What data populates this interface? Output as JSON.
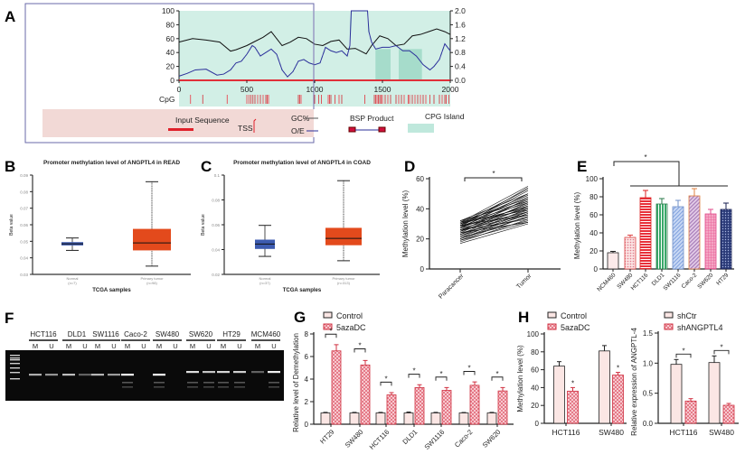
{
  "panel_labels": {
    "A": "A",
    "B": "B",
    "C": "C",
    "D": "D",
    "E": "E",
    "F": "F",
    "G": "G",
    "H": "H"
  },
  "colors": {
    "gc": "#111111",
    "oe": "#2b2f9a",
    "cpg": "#e0303a",
    "island": "#bfe8dc",
    "legend_bg": "#f2d9d6",
    "box_normal": "#3d5bb0",
    "box_tumor": "#e34a1c",
    "bar_ctrl": "#fbe6e4",
    "bar_aza": "#e8909a"
  },
  "chart_data": [
    {
      "id": "A",
      "type": "line",
      "xlim": [
        0,
        2000
      ],
      "xticks": [
        "0",
        "500",
        "1000",
        "1500",
        "2000"
      ],
      "ylim_left": [
        0,
        100
      ],
      "yticks_left": [
        "0",
        "20",
        "40",
        "60",
        "80",
        "100"
      ],
      "ylim_right": [
        0.0,
        2.0
      ],
      "yticks_right": [
        "0.0",
        "0.4",
        "0.8",
        "1.2",
        "1.6",
        "2.0"
      ],
      "series": [
        {
          "name": "GC%",
          "axis": "left",
          "x": [
            0,
            100,
            200,
            300,
            380,
            420,
            500,
            560,
            620,
            680,
            720,
            760,
            820,
            880,
            940,
            1000,
            1060,
            1120,
            1180,
            1240,
            1300,
            1380,
            1420,
            1480,
            1540,
            1600,
            1660,
            1720,
            1780,
            1840,
            1900,
            1960,
            2000
          ],
          "y": [
            55,
            60,
            58,
            55,
            42,
            44,
            50,
            56,
            62,
            70,
            60,
            50,
            55,
            62,
            60,
            52,
            50,
            56,
            58,
            45,
            46,
            38,
            50,
            64,
            60,
            50,
            52,
            64,
            66,
            70,
            74,
            70,
            66
          ]
        },
        {
          "name": "O/E",
          "axis": "right",
          "x": [
            0,
            60,
            120,
            200,
            280,
            330,
            380,
            420,
            460,
            500,
            540,
            560,
            600,
            640,
            680,
            720,
            760,
            800,
            840,
            880,
            920,
            960,
            1000,
            1040,
            1080,
            1120,
            1160,
            1200,
            1240,
            1260,
            1270,
            1390,
            1400,
            1420,
            1450,
            1500,
            1550,
            1600,
            1650,
            1700,
            1750,
            1800,
            1850,
            1880,
            1920,
            1960,
            2000
          ],
          "y": [
            0.12,
            0.2,
            0.3,
            0.32,
            0.15,
            0.18,
            0.3,
            0.5,
            0.55,
            0.75,
            1.0,
            0.95,
            0.7,
            0.8,
            0.9,
            0.75,
            0.3,
            0.1,
            0.25,
            0.55,
            0.6,
            0.5,
            0.45,
            0.5,
            0.95,
            0.85,
            0.8,
            0.85,
            0.7,
            1.0,
            2.0,
            2.0,
            1.4,
            1.1,
            0.9,
            0.95,
            0.95,
            1.0,
            0.85,
            0.85,
            0.7,
            0.45,
            0.3,
            0.4,
            0.6,
            1.05,
            0.85
          ]
        }
      ],
      "cpg_label": "CpG",
      "cpg_positions": [
        85,
        175,
        355,
        500,
        515,
        530,
        545,
        560,
        580,
        600,
        620,
        640,
        650,
        660,
        880,
        890,
        900,
        1000,
        1030,
        1050,
        1100,
        1110,
        1120,
        1150,
        1180,
        1200,
        1370,
        1440,
        1450,
        1460,
        1470,
        1480,
        1490,
        1500,
        1520,
        1540,
        1560,
        1600,
        1620,
        1640,
        1660,
        1690,
        1700,
        1720,
        1740,
        1760,
        1780,
        1800,
        1820,
        1850,
        1880,
        1920,
        1940,
        1960,
        1970,
        1990
      ],
      "cpg_islands": [
        [
          1450,
          1560
        ],
        [
          1620,
          1790
        ]
      ],
      "legend": {
        "input_sequence": "Input Sequence",
        "tss": "TSS",
        "gc": "GC%",
        "oe": "O/E",
        "bsp": "BSP Product",
        "island": "CPG Island"
      }
    },
    {
      "id": "B",
      "type": "box",
      "title": "Promoter methylation level of ANGPTL4 in READ",
      "ylabel": "Beta value",
      "xlabel": "TCGA samples",
      "ylim": [
        0.03,
        0.09
      ],
      "yticks": [
        "0.03",
        "0.04",
        "0.05",
        "0.06",
        "0.07",
        "0.08",
        "0.09"
      ],
      "categories": [
        {
          "name": "Normal",
          "n": "(n=7)",
          "min": 0.0445,
          "q1": 0.0475,
          "median": 0.0485,
          "q3": 0.0495,
          "max": 0.052
        },
        {
          "name": "Primary tumor",
          "n": "(n=98)",
          "min": 0.035,
          "q1": 0.0445,
          "median": 0.049,
          "q3": 0.0575,
          "max": 0.086
        }
      ]
    },
    {
      "id": "C",
      "type": "box",
      "title": "Promoter methylation level of ANGPTL4 in COAD",
      "ylabel": "Beta value",
      "xlabel": "TCGA samples",
      "ylim": [
        0.02,
        0.1
      ],
      "yticks": [
        "0.02",
        "0.04",
        "0.06",
        "0.08",
        "0.1"
      ],
      "categories": [
        {
          "name": "Normal",
          "n": "(n=37)",
          "min": 0.0345,
          "q1": 0.0405,
          "median": 0.0445,
          "q3": 0.048,
          "max": 0.0595
        },
        {
          "name": "Primary tumor",
          "n": "(n=313)",
          "min": 0.031,
          "q1": 0.0435,
          "median": 0.049,
          "q3": 0.0575,
          "max": 0.0955
        }
      ]
    },
    {
      "id": "D",
      "type": "line",
      "ylabel": "Methylation level (%)",
      "ylim": [
        0,
        60
      ],
      "yticks": [
        "0",
        "20",
        "40",
        "60"
      ],
      "categories": [
        "Paracancer",
        "Tumor"
      ],
      "significance": "*",
      "pairs": [
        [
          17,
          30
        ],
        [
          18,
          33
        ],
        [
          19,
          31
        ],
        [
          20,
          35
        ],
        [
          20,
          37
        ],
        [
          21,
          32
        ],
        [
          22,
          40
        ],
        [
          22,
          36
        ],
        [
          23,
          38
        ],
        [
          23,
          42
        ],
        [
          24,
          34
        ],
        [
          24,
          44
        ],
        [
          25,
          39
        ],
        [
          25,
          41
        ],
        [
          25,
          47
        ],
        [
          26,
          36
        ],
        [
          26,
          43
        ],
        [
          27,
          45
        ],
        [
          27,
          38
        ],
        [
          27,
          50
        ],
        [
          28,
          40
        ],
        [
          28,
          46
        ],
        [
          28,
          42
        ],
        [
          29,
          48
        ],
        [
          29,
          36
        ],
        [
          29,
          52
        ],
        [
          30,
          44
        ],
        [
          30,
          41
        ],
        [
          30,
          53
        ],
        [
          31,
          47
        ],
        [
          31,
          39
        ],
        [
          31,
          55
        ],
        [
          32,
          50
        ],
        [
          32,
          45
        ],
        [
          26,
          33
        ],
        [
          24,
          31
        ],
        [
          21,
          38
        ],
        [
          19,
          35
        ],
        [
          28,
          54
        ],
        [
          30,
          49
        ]
      ]
    },
    {
      "id": "E",
      "type": "bar",
      "ylabel": "Methylation level (%)",
      "ylim": [
        0,
        100
      ],
      "yticks": [
        "0",
        "20",
        "40",
        "60",
        "80",
        "100"
      ],
      "categories": [
        "NCM460",
        "SW480",
        "HCT116",
        "DLD1",
        "SW1116",
        "Caco-2",
        "SW620",
        "HT29"
      ],
      "values": [
        18,
        35,
        79,
        72,
        69,
        81,
        61,
        66
      ],
      "errors": [
        1.5,
        2.5,
        8,
        6,
        7,
        8,
        5,
        7
      ],
      "significance": "*"
    },
    {
      "id": "F",
      "type": "gel",
      "lanes": [
        "HCT116",
        "DLD1",
        "SW1116",
        "Caco-2",
        "SW480",
        "SW620",
        "HT29",
        "MCM460"
      ],
      "sub_labels": [
        "M",
        "U"
      ],
      "bands": [
        [
          0.5,
          0.35
        ],
        [
          0.6,
          0.05
        ],
        [
          0.55,
          0.4
        ],
        [
          0.95,
          0.0
        ],
        [
          1.0,
          0.0
        ],
        [
          0.8,
          0.65
        ],
        [
          0.75,
          0.7
        ],
        [
          0.05,
          0.9
        ]
      ]
    },
    {
      "id": "G",
      "type": "bar",
      "ylabel": "Relative level of Demethylation",
      "ylim": [
        0,
        8
      ],
      "yticks": [
        "0",
        "2",
        "4",
        "6",
        "8"
      ],
      "categories": [
        "HT29",
        "SW480",
        "HCT116",
        "DLD1",
        "SW1116",
        "Caco-2",
        "SW620"
      ],
      "series": [
        {
          "name": "Control",
          "values": [
            1,
            1,
            1,
            1,
            1,
            1,
            1
          ],
          "errors": [
            0.05,
            0.05,
            0.05,
            0.08,
            0.05,
            0.04,
            0.05
          ]
        },
        {
          "name": "5azaDC",
          "values": [
            6.5,
            5.25,
            2.6,
            3.25,
            3.0,
            3.45,
            2.95
          ],
          "errors": [
            0.55,
            0.4,
            0.2,
            0.25,
            0.25,
            0.3,
            0.3
          ]
        }
      ],
      "significance": "*"
    },
    {
      "id": "H1",
      "type": "bar",
      "ylabel": "Methylation level (%)",
      "ylim": [
        0,
        100
      ],
      "yticks": [
        "0",
        "20",
        "40",
        "60",
        "80",
        "100"
      ],
      "categories": [
        "HCT116",
        "SW480"
      ],
      "series": [
        {
          "name": "Control",
          "values": [
            64,
            81
          ],
          "errors": [
            5,
            6
          ]
        },
        {
          "name": "5azaDC",
          "values": [
            36,
            54
          ],
          "errors": [
            4,
            3
          ]
        }
      ],
      "significance": "*"
    },
    {
      "id": "H2",
      "type": "bar",
      "ylabel": "Relative expression of ANGPTL-4",
      "ylim": [
        0,
        1.5
      ],
      "yticks": [
        "0.0",
        "0.5",
        "1.0",
        "1.5"
      ],
      "categories": [
        "HCT116",
        "SW480"
      ],
      "series": [
        {
          "name": "shCtr",
          "values": [
            0.98,
            1.01
          ],
          "errors": [
            0.08,
            0.11
          ]
        },
        {
          "name": "shANGPTL4",
          "values": [
            0.37,
            0.3
          ],
          "errors": [
            0.04,
            0.03
          ]
        }
      ],
      "significance": "*"
    }
  ]
}
